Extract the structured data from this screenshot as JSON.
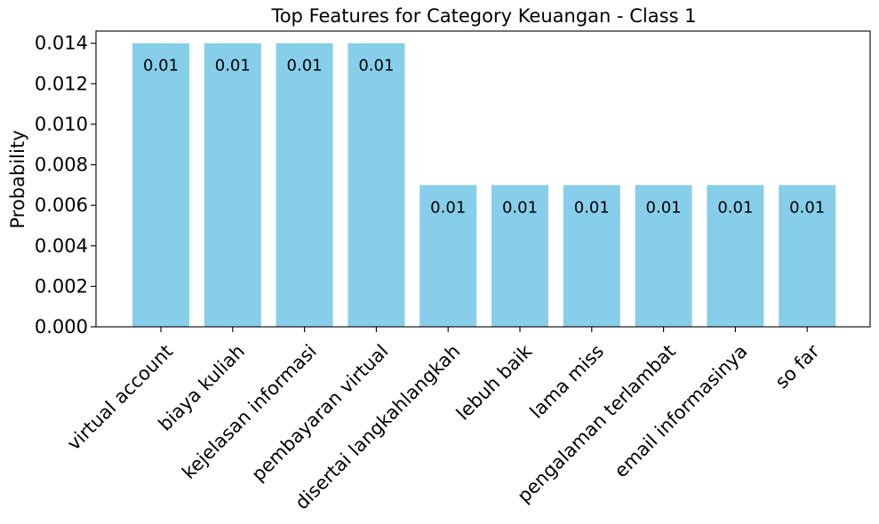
{
  "chart_data": {
    "type": "bar",
    "title": "Top Features for Category Keuangan - Class 1",
    "xlabel": "",
    "ylabel": "Probability",
    "categories": [
      "virtual account",
      "biaya kuliah",
      "kejelasan informasi",
      "pembayaran virtual",
      "disertai langkahlangkah",
      "lebuh baik",
      "lama miss",
      "pengalaman terlambat",
      "email informasinya",
      "so far"
    ],
    "values": [
      0.014,
      0.014,
      0.014,
      0.014,
      0.007,
      0.007,
      0.007,
      0.007,
      0.007,
      0.007
    ],
    "data_labels": [
      "0.01",
      "0.01",
      "0.01",
      "0.01",
      "0.01",
      "0.01",
      "0.01",
      "0.01",
      "0.01",
      "0.01"
    ],
    "ylim": [
      0,
      0.0146
    ],
    "yticks": [
      "0.000",
      "0.002",
      "0.004",
      "0.006",
      "0.008",
      "0.010",
      "0.012",
      "0.014"
    ],
    "bar_color": "#87ceeb",
    "grid": false
  }
}
